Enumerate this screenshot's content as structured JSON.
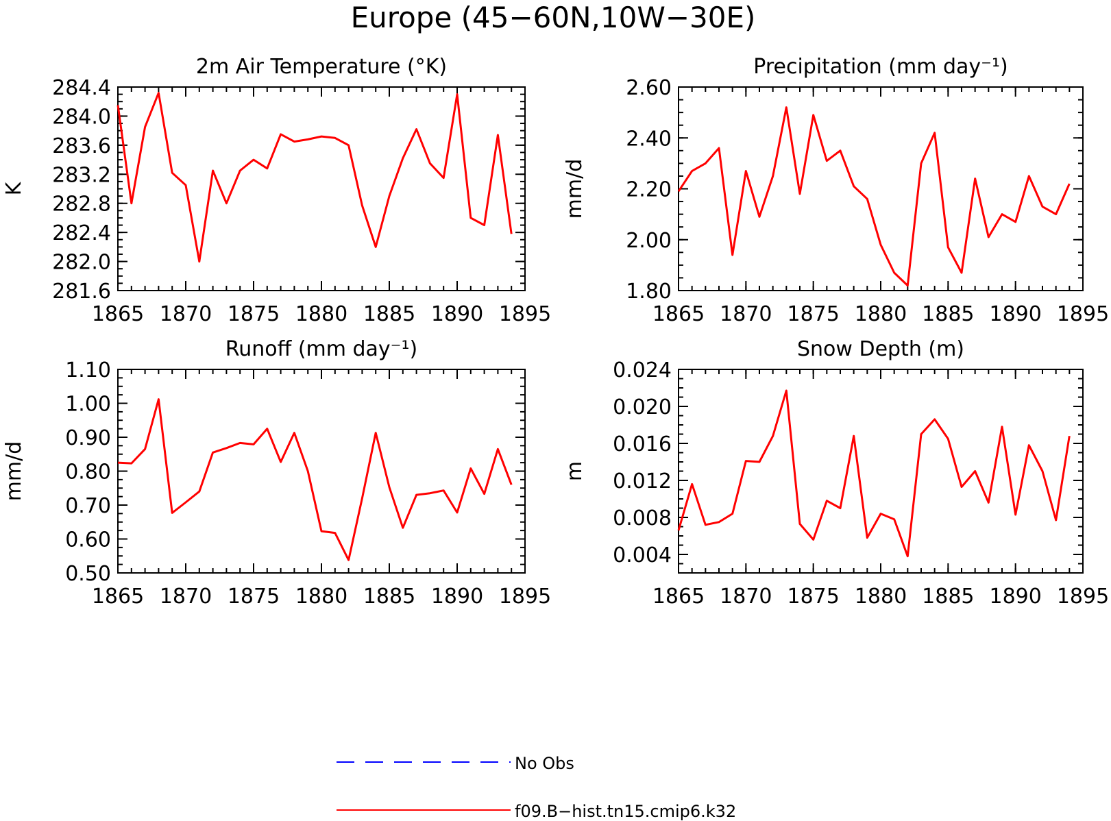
{
  "figure": {
    "title": "Europe (45−60N,10W−30E)",
    "legend": [
      {
        "label": "No Obs",
        "color": "#0000ff",
        "style": "dashed"
      },
      {
        "label": "f09.B−hist.tn15.cmip6.k32",
        "color": "#ff0000",
        "style": "solid"
      }
    ]
  },
  "chart_data": [
    {
      "type": "line",
      "title": "2m Air Temperature (°K)",
      "ylabel": "K",
      "xlim": [
        1865,
        1895
      ],
      "ylim": [
        281.6,
        284.4
      ],
      "xticks": [
        "1865",
        "1870",
        "1875",
        "1880",
        "1885",
        "1890",
        "1895"
      ],
      "yticks": [
        "281.6",
        "282.0",
        "282.4",
        "282.8",
        "283.2",
        "283.6",
        "284.0",
        "284.4"
      ],
      "x": [
        1865,
        1866,
        1867,
        1868,
        1869,
        1870,
        1871,
        1872,
        1873,
        1874,
        1875,
        1876,
        1877,
        1878,
        1879,
        1880,
        1881,
        1882,
        1883,
        1884,
        1885,
        1886,
        1887,
        1888,
        1889,
        1890,
        1891,
        1892,
        1893,
        1894
      ],
      "series": [
        {
          "name": "f09.B−hist.tn15.cmip6.k32",
          "color": "#ff0000",
          "values": [
            284.15,
            282.8,
            283.85,
            284.32,
            283.22,
            283.05,
            282.0,
            283.25,
            282.8,
            283.25,
            283.4,
            283.28,
            283.75,
            283.65,
            283.68,
            283.72,
            283.7,
            283.6,
            282.77,
            282.2,
            282.9,
            283.42,
            283.82,
            283.35,
            283.15,
            284.3,
            282.6,
            282.5,
            283.74,
            282.38
          ]
        }
      ]
    },
    {
      "type": "line",
      "title": "Precipitation (mm day⁻¹)",
      "ylabel": "mm/d",
      "xlim": [
        1865,
        1895
      ],
      "ylim": [
        1.8,
        2.6
      ],
      "xticks": [
        "1865",
        "1870",
        "1875",
        "1880",
        "1885",
        "1890",
        "1895"
      ],
      "yticks": [
        "1.80",
        "2.00",
        "2.20",
        "2.40",
        "2.60"
      ],
      "x": [
        1865,
        1866,
        1867,
        1868,
        1869,
        1870,
        1871,
        1872,
        1873,
        1874,
        1875,
        1876,
        1877,
        1878,
        1879,
        1880,
        1881,
        1882,
        1883,
        1884,
        1885,
        1886,
        1887,
        1888,
        1889,
        1890,
        1891,
        1892,
        1893,
        1894
      ],
      "series": [
        {
          "name": "f09.B−hist.tn15.cmip6.k32",
          "color": "#ff0000",
          "values": [
            2.19,
            2.27,
            2.3,
            2.36,
            1.94,
            2.27,
            2.09,
            2.25,
            2.52,
            2.18,
            2.49,
            2.31,
            2.35,
            2.21,
            2.16,
            1.98,
            1.87,
            1.82,
            2.3,
            2.42,
            1.97,
            1.87,
            2.24,
            2.01,
            2.1,
            2.07,
            2.25,
            2.13,
            2.1,
            2.22
          ]
        }
      ]
    },
    {
      "type": "line",
      "title": "Runoff (mm day⁻¹)",
      "ylabel": "mm/d",
      "xlim": [
        1865,
        1895
      ],
      "ylim": [
        0.5,
        1.1
      ],
      "xticks": [
        "1865",
        "1870",
        "1875",
        "1880",
        "1885",
        "1890",
        "1895"
      ],
      "yticks": [
        "0.50",
        "0.60",
        "0.70",
        "0.80",
        "0.90",
        "1.00",
        "1.10"
      ],
      "x": [
        1865,
        1866,
        1867,
        1868,
        1869,
        1870,
        1871,
        1872,
        1873,
        1874,
        1875,
        1876,
        1877,
        1878,
        1879,
        1880,
        1881,
        1882,
        1883,
        1884,
        1885,
        1886,
        1887,
        1888,
        1889,
        1890,
        1891,
        1892,
        1893,
        1894
      ],
      "series": [
        {
          "name": "f09.B−hist.tn15.cmip6.k32",
          "color": "#ff0000",
          "values": [
            0.825,
            0.823,
            0.865,
            1.012,
            0.677,
            0.708,
            0.74,
            0.855,
            0.868,
            0.883,
            0.879,
            0.925,
            0.827,
            0.913,
            0.8,
            0.623,
            0.618,
            0.538,
            0.72,
            0.913,
            0.753,
            0.633,
            0.73,
            0.735,
            0.743,
            0.678,
            0.808,
            0.733,
            0.865,
            0.76
          ]
        }
      ]
    },
    {
      "type": "line",
      "title": "Snow Depth (m)",
      "ylabel": "m",
      "xlim": [
        1865,
        1895
      ],
      "ylim": [
        0.002,
        0.024
      ],
      "xticks": [
        "1865",
        "1870",
        "1875",
        "1880",
        "1885",
        "1890",
        "1895"
      ],
      "yticks": [
        "0.004",
        "0.008",
        "0.012",
        "0.016",
        "0.020",
        "0.024"
      ],
      "x": [
        1865,
        1866,
        1867,
        1868,
        1869,
        1870,
        1871,
        1872,
        1873,
        1874,
        1875,
        1876,
        1877,
        1878,
        1879,
        1880,
        1881,
        1882,
        1883,
        1884,
        1885,
        1886,
        1887,
        1888,
        1889,
        1890,
        1891,
        1892,
        1893,
        1894
      ],
      "series": [
        {
          "name": "f09.B−hist.tn15.cmip6.k32",
          "color": "#ff0000",
          "values": [
            0.0066,
            0.0116,
            0.0072,
            0.0075,
            0.0084,
            0.0141,
            0.014,
            0.0168,
            0.0217,
            0.0073,
            0.0056,
            0.0098,
            0.009,
            0.0168,
            0.0058,
            0.0084,
            0.0078,
            0.0038,
            0.017,
            0.0186,
            0.0165,
            0.0113,
            0.013,
            0.0096,
            0.0178,
            0.0083,
            0.0158,
            0.013,
            0.0077,
            0.0168
          ]
        }
      ]
    }
  ]
}
